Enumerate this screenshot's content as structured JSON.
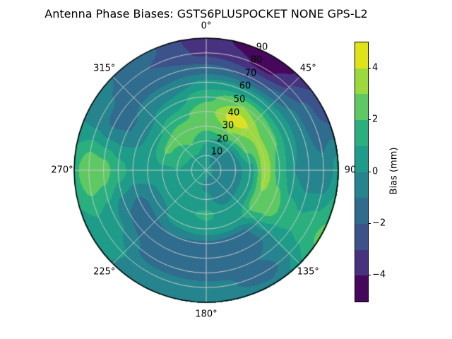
{
  "title": "Antenna Phase Biases: GSTS6PLUSPOCKET NONE GPS-L2",
  "chart_data": {
    "type": "heatmap",
    "projection": "polar",
    "title": "Antenna Phase Biases: GSTS6PLUSPOCKET NONE GPS-L2",
    "theta_zero": "top",
    "theta_direction": "clockwise",
    "angle_tick_labels": [
      {
        "angle": 0,
        "text": "0°"
      },
      {
        "angle": 45,
        "text": "45°"
      },
      {
        "angle": 90,
        "text": "90"
      },
      {
        "angle": 135,
        "text": "135°"
      },
      {
        "angle": 180,
        "text": "180°"
      },
      {
        "angle": 225,
        "text": "225°"
      },
      {
        "angle": 270,
        "text": "270°"
      },
      {
        "angle": 315,
        "text": "315°"
      }
    ],
    "radial_ticks": [
      {
        "r": 10,
        "text": "10"
      },
      {
        "r": 20,
        "text": "20"
      },
      {
        "r": 30,
        "text": "30"
      },
      {
        "r": 40,
        "text": "40"
      },
      {
        "r": 50,
        "text": "50"
      },
      {
        "r": 60,
        "text": "60"
      },
      {
        "r": 70,
        "text": "70"
      },
      {
        "r": 80,
        "text": "80"
      },
      {
        "r": 90,
        "text": "90"
      }
    ],
    "radial_label_azimuth_deg": 22.5,
    "radial_max": 90,
    "azimuth_deg": [
      0,
      30,
      60,
      90,
      120,
      150,
      180,
      210,
      240,
      270,
      300,
      330
    ],
    "zenith_deg": [
      0,
      10,
      20,
      30,
      40,
      50,
      60,
      70,
      80,
      90
    ],
    "bias_mm": [
      [
        0.3,
        0.2,
        1.0,
        2.2,
        2.6,
        1.8,
        0.2,
        -1.8,
        -3.2,
        -3.6
      ],
      [
        0.3,
        -0.3,
        0.5,
        3.0,
        4.6,
        3.0,
        0.4,
        -2.2,
        -4.2,
        -4.8
      ],
      [
        0.3,
        -0.5,
        -0.2,
        2.2,
        3.2,
        2.2,
        0.5,
        -0.8,
        -1.8,
        -2.6
      ],
      [
        0.3,
        -0.6,
        -0.4,
        0.6,
        3.6,
        1.6,
        0.0,
        -0.7,
        -0.8,
        0.4
      ],
      [
        0.3,
        -0.5,
        -0.4,
        0.6,
        2.8,
        2.6,
        1.6,
        1.2,
        1.6,
        2.2
      ],
      [
        0.3,
        -0.5,
        -0.6,
        0.3,
        0.6,
        -1.3,
        -1.6,
        -1.0,
        -1.4,
        -0.8
      ],
      [
        0.3,
        -0.3,
        0.3,
        1.2,
        0.7,
        -1.2,
        -1.8,
        -1.5,
        -0.6,
        -0.3
      ],
      [
        0.3,
        0.3,
        0.6,
        0.8,
        0.3,
        -1.0,
        -1.8,
        -1.5,
        -0.5,
        -0.7
      ],
      [
        0.3,
        0.4,
        0.8,
        0.6,
        -0.6,
        -1.4,
        -1.0,
        0.2,
        0.7,
        0.5
      ],
      [
        0.3,
        0.6,
        1.0,
        0.8,
        0.4,
        0.6,
        1.4,
        2.4,
        2.8,
        1.8
      ],
      [
        0.3,
        0.8,
        1.4,
        2.2,
        0.8,
        -0.3,
        -1.1,
        -1.3,
        -0.8,
        -0.4
      ],
      [
        0.3,
        0.8,
        2.0,
        2.8,
        1.6,
        0.3,
        -0.6,
        -1.5,
        -2.0,
        -1.7
      ]
    ],
    "levels": [
      -5,
      -4,
      -3,
      -2,
      -1,
      0,
      1,
      2,
      3,
      4,
      5
    ],
    "band_colors": [
      "#46085c",
      "#46327e",
      "#3b528b",
      "#2f6c8e",
      "#25848e",
      "#1e9c89",
      "#2ab07f",
      "#5ec962",
      "#9bd93c",
      "#dfe318"
    ],
    "colorbar": {
      "label": "Bias (mm)",
      "vmin": -5,
      "vmax": 5,
      "ticks": [
        {
          "value": 4,
          "text": "4"
        },
        {
          "value": 2,
          "text": "2"
        },
        {
          "value": 0,
          "text": "0"
        },
        {
          "value": -2,
          "text": "−2"
        },
        {
          "value": -4,
          "text": "−4"
        }
      ]
    },
    "grid_color": "#c8c8c8",
    "outline_color": "#000000",
    "background": "#ffffff"
  }
}
